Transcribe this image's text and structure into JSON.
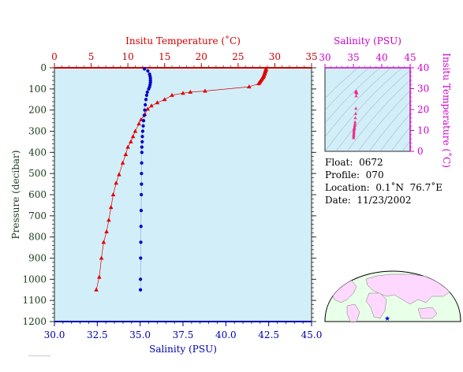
{
  "chart_data": [
    {
      "type": "scatter",
      "top_axis_label": "Insitu Temperature (˚C)",
      "bottom_axis_label": "Salinity (PSU)",
      "ylabel": "Pressure (decibar)",
      "temperature_range": [
        0,
        35
      ],
      "salinity_range": [
        30.0,
        45.0
      ],
      "pressure_range": [
        0,
        1200
      ],
      "y_inverted": true,
      "grid": false,
      "top_ticks": [
        "0",
        "5",
        "10",
        "15",
        "20",
        "25",
        "30",
        "35"
      ],
      "bottom_ticks": [
        "30.0",
        "32.5",
        "35.0",
        "37.5",
        "40.0",
        "42.5",
        "45.0"
      ],
      "left_ticks": [
        "0",
        "100",
        "200",
        "300",
        "400",
        "500",
        "600",
        "700",
        "800",
        "900",
        "1000",
        "1100",
        "1200"
      ],
      "colors": {
        "temperature": "#e00000",
        "salinity": "#0000c8",
        "background": "#d2eef8",
        "top_axis": "#cc0000",
        "bottom_axis": "#0000aa",
        "left_axis": "#1a3a1a"
      },
      "series": [
        {
          "marker": "triangle",
          "axis": "temperature",
          "points": [
            [
              28.8,
              5
            ],
            [
              28.8,
              10
            ],
            [
              28.7,
              15
            ],
            [
              28.7,
              20
            ],
            [
              28.6,
              25
            ],
            [
              28.6,
              30
            ],
            [
              28.5,
              35
            ],
            [
              28.5,
              40
            ],
            [
              28.4,
              45
            ],
            [
              28.3,
              50
            ],
            [
              28.2,
              55
            ],
            [
              28.1,
              60
            ],
            [
              28.0,
              65
            ],
            [
              27.9,
              70
            ],
            [
              27.8,
              75
            ],
            [
              26.5,
              90
            ],
            [
              20.5,
              110
            ],
            [
              18.5,
              115
            ],
            [
              17.5,
              120
            ],
            [
              16.0,
              130
            ],
            [
              15.0,
              150
            ],
            [
              14.0,
              165
            ],
            [
              13.2,
              180
            ],
            [
              12.7,
              195
            ],
            [
              12.3,
              220
            ],
            [
              11.8,
              245
            ],
            [
              11.5,
              265
            ],
            [
              11.0,
              300
            ],
            [
              10.7,
              325
            ],
            [
              10.4,
              350
            ],
            [
              10.0,
              375
            ],
            [
              9.7,
              410
            ],
            [
              9.3,
              450
            ],
            [
              8.8,
              505
            ],
            [
              8.4,
              545
            ],
            [
              8.0,
              600
            ],
            [
              7.7,
              660
            ],
            [
              7.4,
              720
            ],
            [
              7.1,
              775
            ],
            [
              6.7,
              825
            ],
            [
              6.4,
              900
            ],
            [
              6.1,
              990
            ],
            [
              5.7,
              1050
            ]
          ]
        },
        {
          "marker": "circle",
          "axis": "salinity",
          "points": [
            [
              35.25,
              5
            ],
            [
              35.45,
              15
            ],
            [
              35.55,
              30
            ],
            [
              35.58,
              40
            ],
            [
              35.6,
              50
            ],
            [
              35.6,
              60
            ],
            [
              35.6,
              70
            ],
            [
              35.58,
              80
            ],
            [
              35.55,
              90
            ],
            [
              35.5,
              100
            ],
            [
              35.42,
              115
            ],
            [
              35.38,
              130
            ],
            [
              35.34,
              150
            ],
            [
              35.3,
              175
            ],
            [
              35.27,
              200
            ],
            [
              35.24,
              225
            ],
            [
              35.2,
              250
            ],
            [
              35.18,
              275
            ],
            [
              35.15,
              300
            ],
            [
              35.13,
              325
            ],
            [
              35.12,
              350
            ],
            [
              35.1,
              375
            ],
            [
              35.1,
              400
            ],
            [
              35.09,
              450
            ],
            [
              35.08,
              500
            ],
            [
              35.08,
              550
            ],
            [
              35.07,
              600
            ],
            [
              35.06,
              675
            ],
            [
              35.05,
              750
            ],
            [
              35.04,
              825
            ],
            [
              35.03,
              900
            ],
            [
              35.02,
              1000
            ],
            [
              35.02,
              1050
            ]
          ]
        }
      ]
    },
    {
      "type": "scatter",
      "top_axis_label": "Salinity (PSU)",
      "ylabel": "Insitu Temperature (˚C)",
      "salinity_range": [
        30,
        45
      ],
      "temperature_range": [
        0,
        40
      ],
      "top_ticks": [
        "30",
        "35",
        "40",
        "45"
      ],
      "right_ticks": [
        "0",
        "10",
        "20",
        "30",
        "40"
      ],
      "colors": {
        "label": "#cc00cc",
        "points": "#ee2288",
        "background": "#d2eef8"
      },
      "points": [
        [
          35.5,
          28.8
        ],
        [
          35.4,
          28.5
        ],
        [
          35.5,
          28.0
        ],
        [
          35.6,
          27.8
        ],
        [
          35.5,
          26.5
        ],
        [
          35.45,
          20.5
        ],
        [
          35.4,
          18.0
        ],
        [
          35.35,
          16.0
        ],
        [
          35.3,
          14.0
        ],
        [
          35.28,
          13.0
        ],
        [
          35.25,
          12.3
        ],
        [
          35.2,
          11.5
        ],
        [
          35.17,
          11.0
        ],
        [
          35.13,
          10.4
        ],
        [
          35.1,
          9.7
        ],
        [
          35.09,
          9.0
        ],
        [
          35.08,
          8.4
        ],
        [
          35.07,
          7.7
        ],
        [
          35.05,
          7.1
        ],
        [
          35.04,
          6.4
        ]
      ]
    }
  ],
  "info": {
    "float_label": "Float:",
    "float_value": "0672",
    "profile_label": "Profile:",
    "profile_value": "070",
    "location_label": "Location:",
    "location_value": "0.1˚N  76.7˚E",
    "date_label": "Date:",
    "date_value": "11/23/2002"
  },
  "map": {
    "marker_icon": "star-icon",
    "land_color": "#ffd8ff",
    "ocean_color": "#e8ffe8"
  },
  "footer_text": "———————"
}
